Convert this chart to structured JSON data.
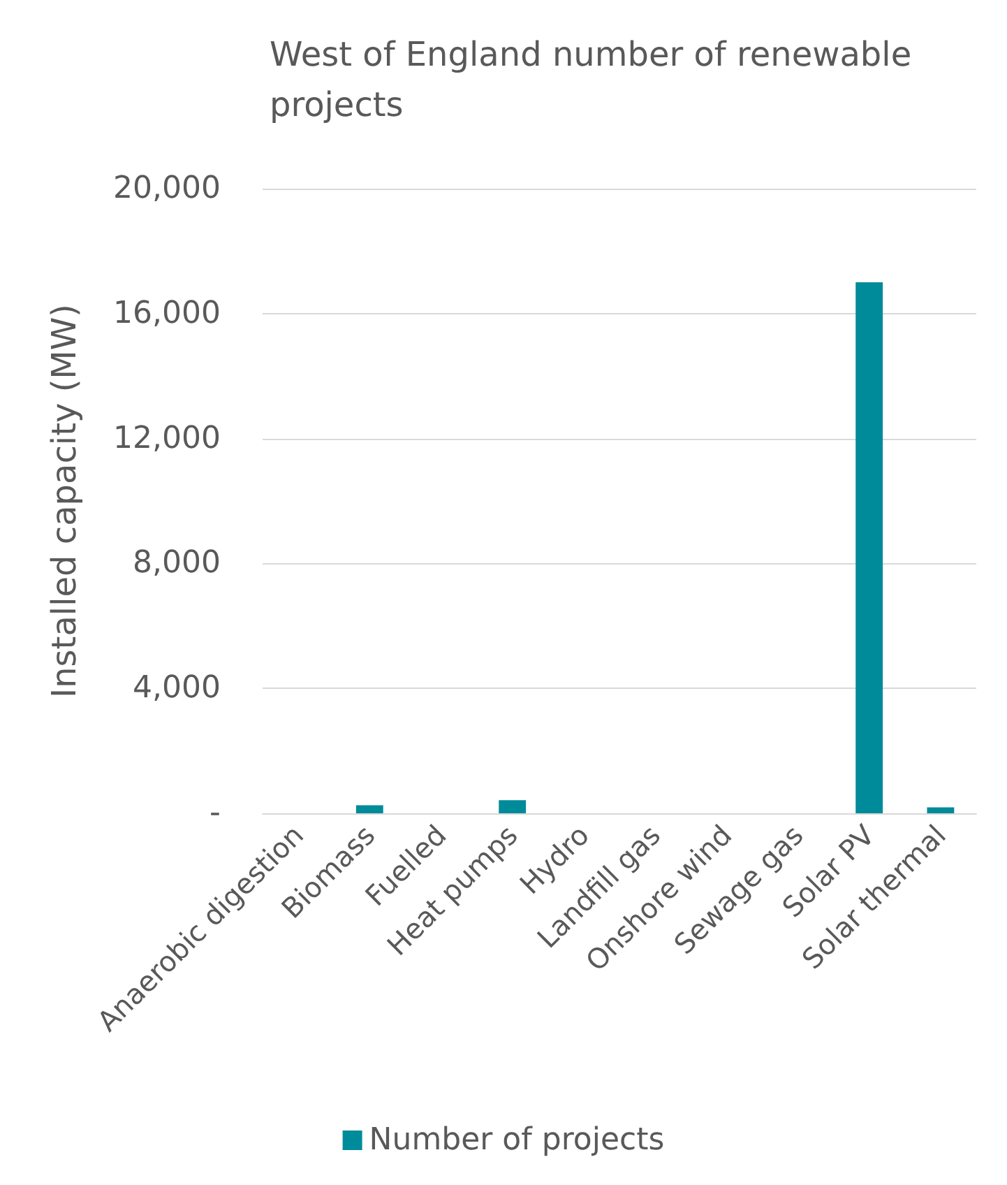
{
  "chart_data": {
    "type": "bar",
    "title": "West of England number of renewable projects",
    "ylabel": "Installed capacity (MW)",
    "categories": [
      "Anaerobic digestion",
      "Biomass",
      "Fuelled",
      "Heat pumps",
      "Hydro",
      "Landfill gas",
      "Onshore wind",
      "Sewage gas",
      "Solar PV",
      "Solar thermal"
    ],
    "series": [
      {
        "name": "Number of projects",
        "color": "#008b9a",
        "values": [
          0,
          260,
          0,
          420,
          0,
          0,
          0,
          0,
          17000,
          190
        ]
      }
    ],
    "ylim": [
      0,
      20000
    ],
    "yticks": [
      {
        "value": 0,
        "label": "-"
      },
      {
        "value": 4000,
        "label": "4,000"
      },
      {
        "value": 8000,
        "label": "8,000"
      },
      {
        "value": 12000,
        "label": "12,000"
      },
      {
        "value": 16000,
        "label": "16,000"
      },
      {
        "value": 20000,
        "label": "20,000"
      }
    ],
    "grid": "y",
    "legend": "bottom"
  }
}
